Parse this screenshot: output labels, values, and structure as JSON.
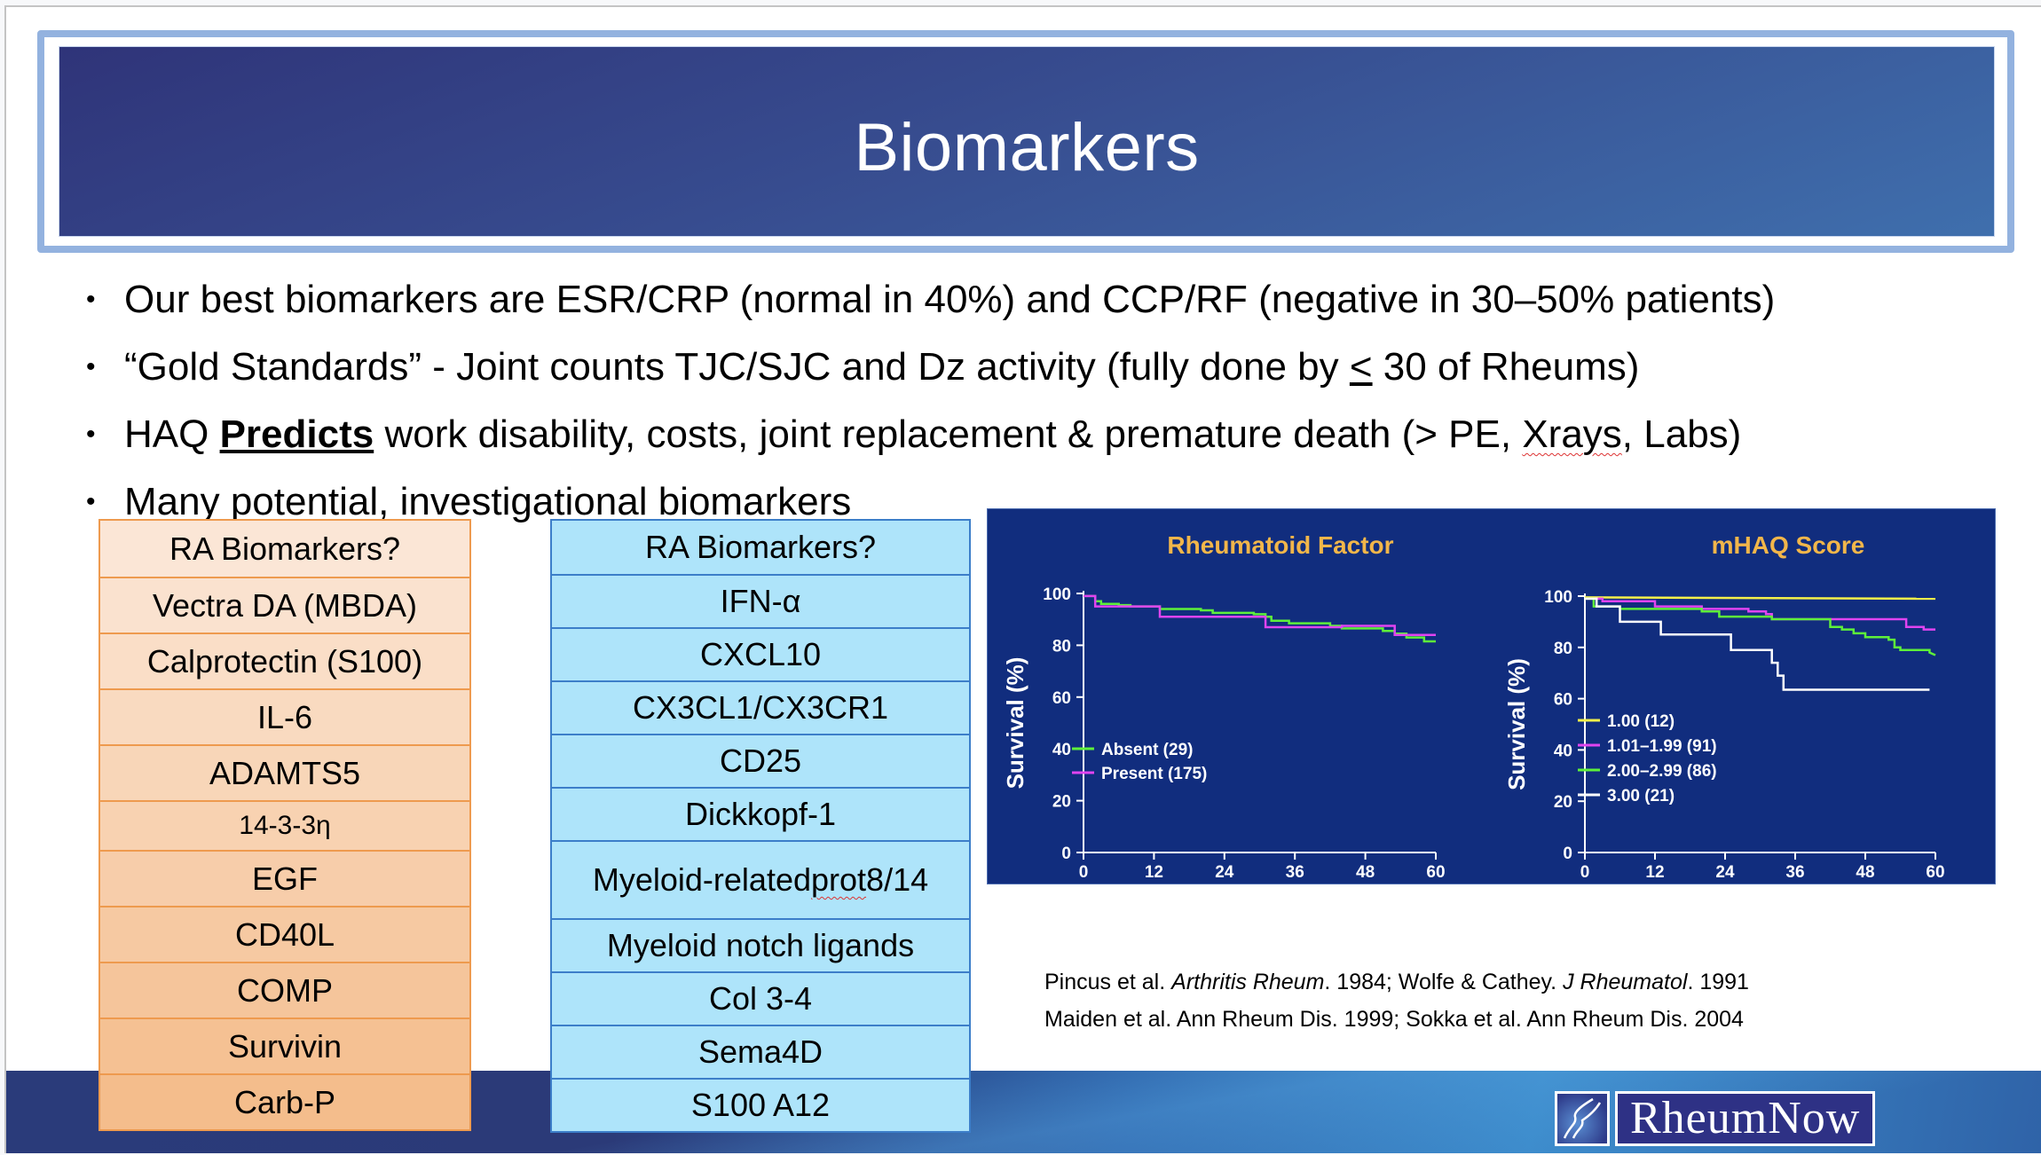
{
  "slide": {
    "title": "Biomarkers",
    "bullets": [
      {
        "text": "Our best biomarkers are ESR/CRP (normal in 40%) and CCP/RF (negative in 30–50% patients)"
      },
      {
        "pre": "“Gold Standards” - Joint counts TJC/SJC and Dz activity (fully done by ",
        "leq": "<",
        "post": " 30 of Rheums)"
      },
      {
        "pre": "HAQ ",
        "bold": "Predicts",
        "mid": " work disability, costs, joint replacement & premature death (> PE, ",
        "squiggle": "Xrays",
        "post": ", Labs)"
      },
      {
        "text": "Many potential, investigational biomarkers"
      }
    ],
    "bullet_glyph": "•"
  },
  "orange_table": {
    "header": "RA Biomarkers?",
    "rows": [
      "Vectra DA (MBDA)",
      "Calprotectin (S100)",
      "IL-6",
      "ADAMTS5",
      "14-3-3η",
      "EGF",
      "CD40L",
      "COMP",
      "Survivin",
      "Carb-P"
    ],
    "colors": {
      "border": "#ee9a4e",
      "fill_top": "#fbe6d6",
      "fill_bottom": "#f4bd8c"
    }
  },
  "blue_table": {
    "header": "RA Biomarkers?",
    "rows": [
      "IFN-α",
      "CXCL10",
      "CX3CL1/CX3CR1",
      "CD25",
      "Dickkopf-1",
      "Myeloid-related prot 8/14",
      "Myeloid notch ligands",
      "Col 3-4",
      "Sema4D",
      "S100 A12"
    ],
    "colors": {
      "border": "#3c7ec9",
      "fill": "#aee4fa"
    }
  },
  "citations": {
    "line1": {
      "a": "Pincus et al. ",
      "a_i": "Arthritis Rheum",
      "b": ". 1984; Wolfe & Cathey. ",
      "b_i": "J Rheumatol",
      "c": ". 1991"
    },
    "line2": "Maiden et al. Ann Rheum Dis. 1999; Sokka et al. Ann Rheum Dis. 2004"
  },
  "logo": {
    "word": "RheumNow",
    "icon": "joint-figure-icon"
  },
  "chart_data": [
    {
      "type": "line",
      "title": "Rheumatoid Factor",
      "xlabel": "",
      "ylabel": "Survival (%)",
      "x_ticks": [
        0,
        12,
        24,
        36,
        48,
        60
      ],
      "y_ticks": [
        0,
        20,
        40,
        60,
        80,
        100
      ],
      "xlim": [
        0,
        60
      ],
      "ylim": [
        0,
        100
      ],
      "legend_position": "lower-left",
      "series": [
        {
          "name": "Absent (29)",
          "color": "#5ef03a",
          "points": [
            [
              0,
              99
            ],
            [
              2,
              99
            ],
            [
              2,
              97
            ],
            [
              3,
              97
            ],
            [
              3,
              96
            ],
            [
              6,
              96
            ],
            [
              6,
              95.5
            ],
            [
              8,
              95.5
            ],
            [
              8,
              95
            ],
            [
              13,
              95
            ],
            [
              13,
              94
            ],
            [
              20,
              94
            ],
            [
              20,
              93.5
            ],
            [
              22,
              93.5
            ],
            [
              22,
              92.5
            ],
            [
              29,
              92.5
            ],
            [
              29,
              92
            ],
            [
              31,
              92
            ],
            [
              31,
              91
            ],
            [
              32,
              91
            ],
            [
              32,
              89.5
            ],
            [
              35,
              89.5
            ],
            [
              35,
              88.5
            ],
            [
              42,
              88.5
            ],
            [
              42,
              87.5
            ],
            [
              44,
              87.5
            ],
            [
              44,
              86.5
            ],
            [
              51,
              86.5
            ],
            [
              51,
              85.5
            ],
            [
              53,
              85.5
            ],
            [
              53,
              84.5
            ],
            [
              55,
              84.5
            ],
            [
              55,
              83
            ],
            [
              58,
              83
            ],
            [
              58,
              81.5
            ],
            [
              60,
              81.5
            ]
          ]
        },
        {
          "name": "Present (175)",
          "color": "#e044f0",
          "points": [
            [
              0,
              99
            ],
            [
              2,
              99
            ],
            [
              2,
              95
            ],
            [
              13,
              95
            ],
            [
              13,
              91
            ],
            [
              31,
              91
            ],
            [
              31,
              87
            ],
            [
              44,
              87
            ],
            [
              44,
              87.5
            ],
            [
              53,
              87.5
            ],
            [
              53,
              84
            ],
            [
              60,
              84
            ]
          ]
        }
      ]
    },
    {
      "type": "line",
      "title": "mHAQ Score",
      "xlabel": "",
      "ylabel": "Survival (%)",
      "x_ticks": [
        0,
        12,
        24,
        36,
        48,
        60
      ],
      "y_ticks": [
        0,
        20,
        40,
        60,
        80,
        100
      ],
      "xlim": [
        0,
        60
      ],
      "ylim": [
        0,
        100
      ],
      "legend_position": "lower-left",
      "series": [
        {
          "name": "1.00 (12)",
          "color": "#f4f04a",
          "points": [
            [
              0,
              99.5
            ],
            [
              60,
              99
            ]
          ]
        },
        {
          "name": "1.01–1.99 (91)",
          "color": "#e044f0",
          "points": [
            [
              0,
              99
            ],
            [
              3,
              99
            ],
            [
              3,
              98
            ],
            [
              12,
              98
            ],
            [
              12,
              96
            ],
            [
              20,
              96
            ],
            [
              20,
              95
            ],
            [
              28,
              95
            ],
            [
              28,
              94
            ],
            [
              31,
              94
            ],
            [
              31,
              93
            ],
            [
              32,
              93
            ],
            [
              32,
              91
            ],
            [
              55,
              91
            ],
            [
              55,
              88
            ],
            [
              58,
              88
            ],
            [
              58,
              87
            ],
            [
              60,
              87
            ]
          ]
        },
        {
          "name": "2.00–2.99 (86)",
          "color": "#5ef03a",
          "points": [
            [
              0,
              99
            ],
            [
              1.5,
              99
            ],
            [
              1.5,
              96
            ],
            [
              6,
              96
            ],
            [
              6,
              95
            ],
            [
              20,
              95
            ],
            [
              20,
              94
            ],
            [
              23,
              94
            ],
            [
              23,
              92
            ],
            [
              32,
              92
            ],
            [
              32,
              91
            ],
            [
              42,
              91
            ],
            [
              42,
              88
            ],
            [
              44,
              88
            ],
            [
              44,
              87
            ],
            [
              46,
              87
            ],
            [
              46,
              85.5
            ],
            [
              48,
              85.5
            ],
            [
              48,
              84
            ],
            [
              52,
              84
            ],
            [
              52,
              83
            ],
            [
              53,
              83
            ],
            [
              53,
              80
            ],
            [
              54,
              80
            ],
            [
              54,
              79
            ],
            [
              59,
              79
            ],
            [
              59,
              78
            ],
            [
              60,
              77
            ]
          ]
        },
        {
          "name": "3.00 (21)",
          "color": "#ffffff",
          "points": [
            [
              0,
              99
            ],
            [
              2,
              99
            ],
            [
              2,
              96
            ],
            [
              6,
              96
            ],
            [
              6,
              90
            ],
            [
              13,
              90
            ],
            [
              13,
              85
            ],
            [
              25,
              85
            ],
            [
              25,
              79
            ],
            [
              32,
              79
            ],
            [
              32,
              74
            ],
            [
              33,
              74
            ],
            [
              33,
              69
            ],
            [
              34,
              69
            ],
            [
              34,
              63.5
            ],
            [
              59,
              63.5
            ]
          ]
        }
      ]
    }
  ]
}
